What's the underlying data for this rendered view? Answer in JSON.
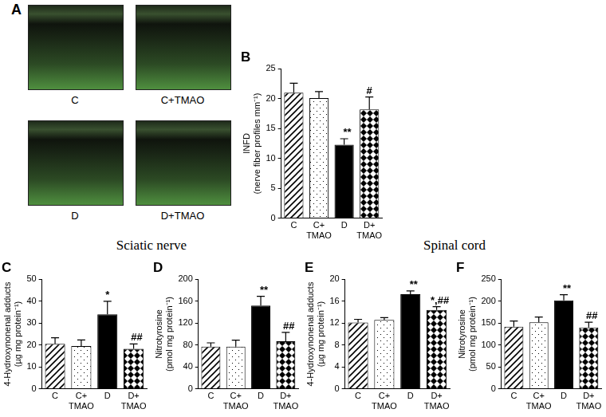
{
  "panel_a": {
    "title": "A",
    "images": [
      "C",
      "C+TMAO",
      "D",
      "D+TMAO"
    ]
  },
  "sections": [
    {
      "title": "Sciatic nerve",
      "panels": [
        "C",
        "D"
      ]
    },
    {
      "title": "Spinal cord",
      "panels": [
        "E",
        "F"
      ]
    }
  ],
  "chart_data": [
    {
      "type": "bar",
      "title": "B",
      "categories": [
        "C",
        "C+ TMAO",
        "D",
        "D+ TMAO"
      ],
      "y_label": [
        "INFD",
        "(nerve fiber profiles mm⁻¹)"
      ],
      "values": [
        21.0,
        20.1,
        12.3,
        18.2
      ],
      "errors": [
        1.6,
        1.1,
        1.0,
        2.1
      ],
      "significance": [
        null,
        null,
        "**",
        "#"
      ],
      "color": "#000000",
      "ylim": [
        0,
        25
      ],
      "yticks": [
        0,
        5,
        10,
        15,
        20,
        25
      ],
      "grid": false
    },
    {
      "type": "bar",
      "title": "C",
      "categories": [
        "C",
        "C+ TMAO",
        "D",
        "D+ TMAO"
      ],
      "y_label": [
        "4-Hydroxynonenal adducts",
        "(µg mg protein⁻¹)"
      ],
      "values": [
        20.5,
        19.5,
        34.0,
        18.3
      ],
      "errors": [
        2.8,
        2.8,
        6.0,
        2.2
      ],
      "significance": [
        null,
        null,
        "*",
        "##"
      ],
      "color": "#000000",
      "ylim": [
        0,
        50
      ],
      "yticks": [
        0,
        10,
        20,
        30,
        40,
        50
      ],
      "grid": false
    },
    {
      "type": "bar",
      "title": "D",
      "categories": [
        "C",
        "C+ TMAO",
        "D",
        "D+ TMAO"
      ],
      "y_label": [
        "Nitrotyrosine",
        "(pmol mg protein⁻¹)"
      ],
      "values": [
        77,
        77,
        152,
        87
      ],
      "errors": [
        7,
        12,
        17,
        16
      ],
      "significance": [
        null,
        null,
        "**",
        "##"
      ],
      "color": "#000000",
      "ylim": [
        0,
        200
      ],
      "yticks": [
        0,
        40,
        80,
        120,
        160,
        200
      ],
      "grid": false
    },
    {
      "type": "bar",
      "title": "E",
      "categories": [
        "C",
        "C+ TMAO",
        "D",
        "D+ TMAO"
      ],
      "y_label": [
        "4-Hydroxynonenal adducts",
        "(µg mg protein⁻¹)"
      ],
      "values": [
        12.1,
        12.6,
        17.3,
        14.4
      ],
      "errors": [
        0.6,
        0.4,
        0.6,
        0.6
      ],
      "significance": [
        null,
        null,
        "**",
        "*,##"
      ],
      "color": "#000000",
      "ylim": [
        0,
        20
      ],
      "yticks": [
        0,
        4,
        8,
        12,
        16,
        20
      ],
      "grid": false
    },
    {
      "type": "bar",
      "title": "F",
      "categories": [
        "C",
        "C+ TMAO",
        "D",
        "D+ TMAO"
      ],
      "y_label": [
        "Nitrotyrosine",
        "(pmol mg protein⁻¹)"
      ],
      "values": [
        142,
        152,
        202,
        140
      ],
      "errors": [
        13,
        12,
        13,
        12
      ],
      "significance": [
        null,
        null,
        "**",
        "##"
      ],
      "color": "#000000",
      "ylim": [
        0,
        250
      ],
      "yticks": [
        0,
        50,
        100,
        150,
        200,
        250
      ],
      "grid": false
    }
  ]
}
